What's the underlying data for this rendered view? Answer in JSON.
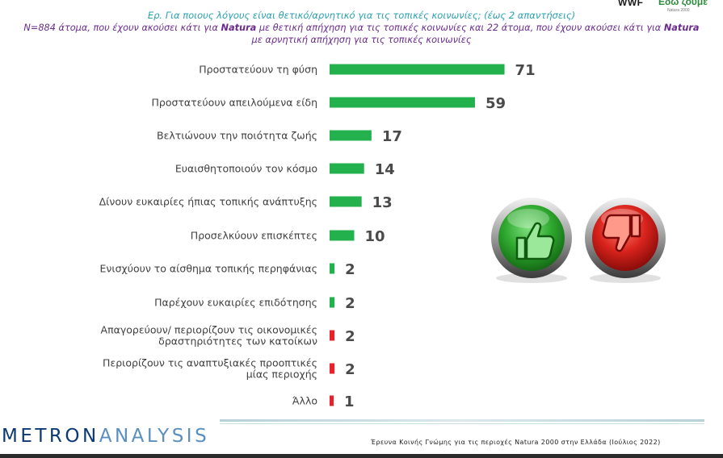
{
  "header": {
    "logo_wwf": "WWF",
    "logo_edo": "Εδώ ζούμε",
    "logo_edo_sub": "Natura 2000",
    "question": "Ερ. Για ποιους λόγους είναι θετικό/αρνητικό για τις τοπικές κοινωνίες; (έως 2 απαντήσεις)",
    "subtitle_line1_a": "Ν=884 άτομα, που έχουν ακούσει κάτι για ",
    "subtitle_line1_b": "Natura",
    "subtitle_line1_c": " με θετική απήχηση για τις τοπικές κοινωνίες και 22 άτομα, που έχουν ακούσει κάτι για ",
    "subtitle_line1_d": "Natura",
    "subtitle_line2": "με αρνητική απήχηση για τις τοπικές κοινωνίες"
  },
  "colors": {
    "positive": "#22b14c",
    "negative": "#e8212a",
    "label": "#404040",
    "value": "#4a4a4a"
  },
  "chart_data": {
    "type": "bar",
    "orientation": "horizontal",
    "xlim": [
      0,
      71
    ],
    "grid": false,
    "categories": [
      [
        "Προστατεύουν τη φύση"
      ],
      [
        "Προστατεύουν απειλούμενα είδη"
      ],
      [
        "Βελτιώνουν την ποιότητα ζωής"
      ],
      [
        "Ευαισθητοποιούν τον κόσμο"
      ],
      [
        "Δίνουν ευκαιρίες ήπιας τοπικής ανάπτυξης"
      ],
      [
        "Προσελκύουν επισκέπτες"
      ],
      [
        "Ενισχύουν το αίσθημα τοπικής περηφάνιας"
      ],
      [
        "Παρέχουν ευκαιρίες επιδότησης"
      ],
      [
        "Απαγορεύουν/ περιορίζουν τις οικονομικές",
        "δραστηριότητες των κατοίκων"
      ],
      [
        "Περιορίζουν τις αναπτυξιακές προοπτικές",
        "μίας περιοχής"
      ],
      [
        "Άλλο"
      ]
    ],
    "values": [
      71,
      59,
      17,
      14,
      13,
      10,
      2,
      2,
      2,
      2,
      1
    ],
    "polarity": [
      "positive",
      "positive",
      "positive",
      "positive",
      "positive",
      "positive",
      "positive",
      "positive",
      "negative",
      "negative",
      "negative"
    ]
  },
  "icons": {
    "thumbs_up": "thumbs-up-icon",
    "thumbs_down": "thumbs-down-icon"
  },
  "footer": {
    "brand_bold": "METRON",
    "brand_thin": "ANALYSIS",
    "survey": "Έρευνα Κοινής Γνώμης για τις περιοχές Natura 2000 στην Ελλάδα (Ιούλιος 2022)"
  }
}
